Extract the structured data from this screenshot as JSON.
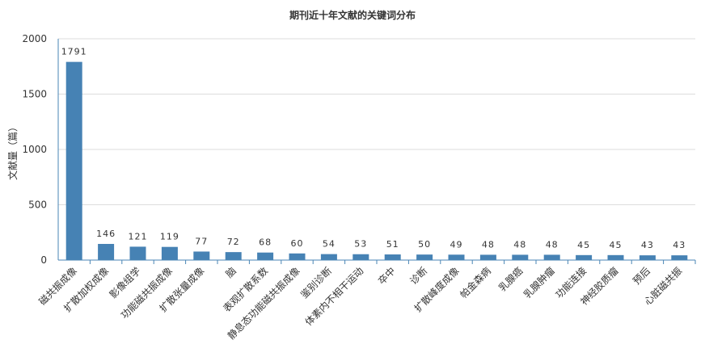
{
  "chart_data": {
    "type": "bar",
    "title": "期刊近十年文献的关键词分布",
    "xlabel": "",
    "ylabel": "文献量（篇）",
    "ylim": [
      0,
      2000
    ],
    "yticks": [
      0,
      500,
      1000,
      1500,
      2000
    ],
    "grid": true,
    "legend": "none",
    "bar_color": "#4682b4",
    "categories": [
      "磁共振成像",
      "扩散加权成像",
      "影像组学",
      "功能磁共振成像",
      "扩散张量成像",
      "脑",
      "表观扩散系数",
      "静息态功能磁共振成像",
      "鉴别诊断",
      "体素内不相干运动",
      "卒中",
      "诊断",
      "扩散峰度成像",
      "帕金森病",
      "乳腺癌",
      "乳腺肿瘤",
      "功能连接",
      "神经胶质瘤",
      "预后",
      "心脏磁共振"
    ],
    "values": [
      1791,
      146,
      121,
      119,
      77,
      72,
      68,
      60,
      54,
      53,
      51,
      50,
      49,
      48,
      48,
      48,
      45,
      45,
      43,
      43
    ]
  }
}
